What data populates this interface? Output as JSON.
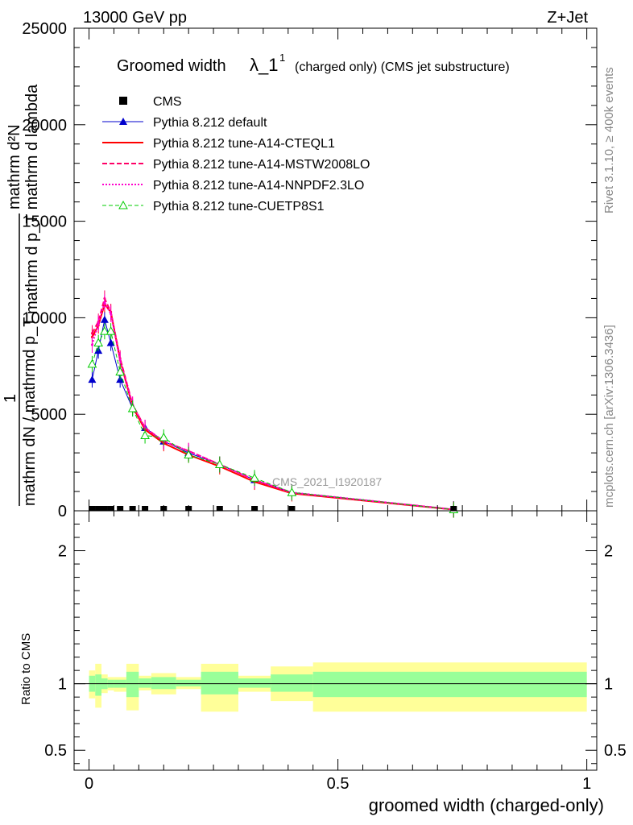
{
  "header": {
    "left_label": "13000 GeV pp",
    "right_label": "Z+Jet",
    "title_main": "Groomed width",
    "title_lambda": "λ_1",
    "title_sup": "1",
    "title_rest": "(charged only) (CMS jet substructure)"
  },
  "side_text": {
    "rivet": "Rivet 3.1.10, ≥ 400k events",
    "mcplots": "mcplots.cern.ch [arXiv:1306.3436]"
  },
  "watermark": "CMS_2021_I1920187",
  "ylabel_main": {
    "line1": "mathrm d²N",
    "line2": "mathrm d p_T mathrm d lambda",
    "num": "1",
    "den": "mathrm dN / mathrmd p_T"
  },
  "ylabel_ratio": "Ratio to CMS",
  "xlabel": "groomed width (charged-only)",
  "colors": {
    "cms": "#000000",
    "default": "#0000cc",
    "cteql1": "#ff0000",
    "mstw": "#ff0066",
    "nnpdf": "#ff00cc",
    "cuetp8s1": "#00cc00",
    "band_inner": "#99ff99",
    "band_outer": "#ffff99"
  },
  "chart_data": [
    {
      "type": "line",
      "panel": "main",
      "xlim": [
        -0.03,
        1.02
      ],
      "ylim": [
        0,
        25000
      ],
      "yticks": [
        "0",
        "5000",
        "10000",
        "15000",
        "20000",
        "25000"
      ],
      "xticks": [
        "0",
        "0.5",
        "1"
      ],
      "legend_position": "top-left",
      "x": [
        0.0063,
        0.0188,
        0.0313,
        0.0438,
        0.0625,
        0.0875,
        0.1125,
        0.15,
        0.2,
        0.2625,
        0.3325,
        0.4075,
        0.7325
      ],
      "series": [
        {
          "name": "CMS",
          "style": "square-marker",
          "color_key": "cms",
          "values": [
            30,
            30,
            30,
            30,
            30,
            30,
            30,
            30,
            30,
            30,
            30,
            30,
            30
          ]
        },
        {
          "name": "Pythia 8.212 default",
          "style": "solid-triangle",
          "color_key": "default",
          "values": [
            6800,
            8300,
            9900,
            8700,
            6800,
            5300,
            4300,
            3600,
            3000,
            2400,
            1600,
            950,
            80
          ]
        },
        {
          "name": "Pythia 8.212 tune-A14-CTEQL1",
          "style": "solid",
          "color_key": "cteql1",
          "values": [
            9000,
            9600,
            10700,
            10300,
            7800,
            5400,
            4200,
            3500,
            2900,
            2300,
            1500,
            900,
            60
          ]
        },
        {
          "name": "Pythia 8.212 tune-A14-MSTW2008LO",
          "style": "dashed",
          "color_key": "mstw",
          "values": [
            9200,
            9800,
            11000,
            10300,
            7900,
            5500,
            4300,
            3600,
            3100,
            2400,
            1600,
            930,
            70
          ]
        },
        {
          "name": "Pythia 8.212 tune-A14-NNPDF2.3LO",
          "style": "dotted",
          "color_key": "nnpdf",
          "values": [
            8600,
            9700,
            10800,
            10200,
            7800,
            5500,
            4300,
            3600,
            3100,
            2400,
            1600,
            950,
            70
          ]
        },
        {
          "name": "Pythia 8.212 tune-CUETP8S1",
          "style": "dashed-open-triangle",
          "color_key": "cuetp8s1",
          "values": [
            7600,
            8700,
            9300,
            9300,
            7200,
            5300,
            3900,
            3800,
            2900,
            2400,
            1700,
            950,
            60
          ]
        }
      ]
    },
    {
      "type": "area",
      "panel": "ratio",
      "xlim": [
        -0.03,
        1.02
      ],
      "ylim": [
        0.35,
        2.3
      ],
      "yticks": [
        "0.5",
        "1",
        "2"
      ],
      "bins": [
        {
          "lo": 0.0,
          "hi": 0.0125,
          "inner": [
            0.94,
            1.06
          ],
          "outer": [
            0.89,
            1.1
          ]
        },
        {
          "lo": 0.0125,
          "hi": 0.025,
          "inner": [
            0.91,
            1.07
          ],
          "outer": [
            0.82,
            1.15
          ]
        },
        {
          "lo": 0.025,
          "hi": 0.0375,
          "inner": [
            0.96,
            1.04
          ],
          "outer": [
            0.93,
            1.07
          ]
        },
        {
          "lo": 0.0375,
          "hi": 0.05,
          "inner": [
            0.97,
            1.03
          ],
          "outer": [
            0.95,
            1.05
          ]
        },
        {
          "lo": 0.05,
          "hi": 0.075,
          "inner": [
            0.97,
            1.03
          ],
          "outer": [
            0.94,
            1.05
          ]
        },
        {
          "lo": 0.075,
          "hi": 0.1,
          "inner": [
            0.9,
            1.09
          ],
          "outer": [
            0.8,
            1.15
          ]
        },
        {
          "lo": 0.1,
          "hi": 0.125,
          "inner": [
            0.97,
            1.04
          ],
          "outer": [
            0.95,
            1.06
          ]
        },
        {
          "lo": 0.125,
          "hi": 0.175,
          "inner": [
            0.96,
            1.05
          ],
          "outer": [
            0.92,
            1.08
          ]
        },
        {
          "lo": 0.175,
          "hi": 0.225,
          "inner": [
            0.98,
            1.03
          ],
          "outer": [
            0.96,
            1.05
          ]
        },
        {
          "lo": 0.225,
          "hi": 0.3,
          "inner": [
            0.92,
            1.09
          ],
          "outer": [
            0.79,
            1.15
          ]
        },
        {
          "lo": 0.3,
          "hi": 0.365,
          "inner": [
            0.97,
            1.04
          ],
          "outer": [
            0.94,
            1.06
          ]
        },
        {
          "lo": 0.365,
          "hi": 0.45,
          "inner": [
            0.94,
            1.07
          ],
          "outer": [
            0.87,
            1.13
          ]
        },
        {
          "lo": 0.45,
          "hi": 1.0,
          "inner": [
            0.9,
            1.09
          ],
          "outer": [
            0.79,
            1.16
          ]
        }
      ],
      "reference_line": 1
    }
  ]
}
